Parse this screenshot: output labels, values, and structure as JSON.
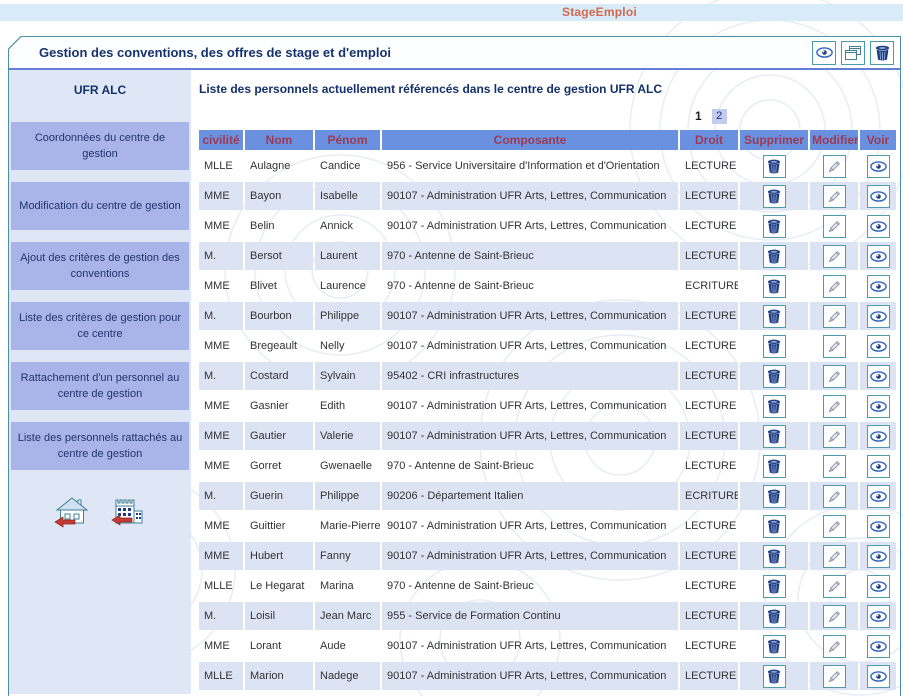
{
  "topbar": {
    "brand": "StageEmploi"
  },
  "titlebar": {
    "title": "Gestion des conventions, des offres de stage et d'emploi",
    "icons": [
      {
        "name": "eye-icon"
      },
      {
        "name": "cascade-windows-icon"
      },
      {
        "name": "trash-icon"
      }
    ]
  },
  "sidebar": {
    "header": "UFR ALC",
    "items": [
      "Coordonnées du centre de gestion",
      "Modification du centre de gestion",
      "Ajout des critères de gestion des conventions",
      "Liste des critères de gestion pour ce centre",
      "Rattachement d'un personnel au centre de gestion",
      "Liste des personnels rattachés au centre de gestion"
    ],
    "footer_icons": [
      "home-exit-icon",
      "building-exit-icon"
    ]
  },
  "main": {
    "title": "Liste des personnels actuellement référencés dans le centre de gestion UFR ALC",
    "pagination": {
      "current": "1",
      "other": "2"
    },
    "table": {
      "headers": [
        "civilité",
        "Nom",
        "Pénom",
        "Composante",
        "Droit",
        "Supprimer",
        "Modifier",
        "Voir"
      ],
      "rows": [
        {
          "civilite": "MLLE",
          "nom": "Aulagne",
          "prenom": "Candice",
          "composante": "956 - Service Universitaire d'Information et d'Orientation",
          "droit": "LECTURE"
        },
        {
          "civilite": "MME",
          "nom": "Bayon",
          "prenom": "Isabelle",
          "composante": "90107 - Administration UFR Arts, Lettres, Communication",
          "droit": "LECTURE"
        },
        {
          "civilite": "MME",
          "nom": "Belin",
          "prenom": "Annick",
          "composante": "90107 - Administration UFR Arts, Lettres, Communication",
          "droit": "LECTURE"
        },
        {
          "civilite": "M.",
          "nom": "Bersot",
          "prenom": "Laurent",
          "composante": "970 - Antenne de Saint-Brieuc",
          "droit": "LECTURE"
        },
        {
          "civilite": "MME",
          "nom": "Blivet",
          "prenom": "Laurence",
          "composante": "970 - Antenne de Saint-Brieuc",
          "droit": "ECRITURE"
        },
        {
          "civilite": "M.",
          "nom": "Bourbon",
          "prenom": "Philippe",
          "composante": "90107 - Administration UFR Arts, Lettres, Communication",
          "droit": "LECTURE"
        },
        {
          "civilite": "MME",
          "nom": "Bregeault",
          "prenom": "Nelly",
          "composante": "90107 - Administration UFR Arts, Lettres, Communication",
          "droit": "LECTURE"
        },
        {
          "civilite": "M.",
          "nom": "Costard",
          "prenom": "Sylvain",
          "composante": "95402 - CRI infrastructures",
          "droit": "LECTURE"
        },
        {
          "civilite": "MME",
          "nom": "Gasnier",
          "prenom": "Edith",
          "composante": "90107 - Administration UFR Arts, Lettres, Communication",
          "droit": "LECTURE"
        },
        {
          "civilite": "MME",
          "nom": "Gautier",
          "prenom": "Valerie",
          "composante": "90107 - Administration UFR Arts, Lettres, Communication",
          "droit": "LECTURE"
        },
        {
          "civilite": "MME",
          "nom": "Gorret",
          "prenom": "Gwenaelle",
          "composante": "970 - Antenne de Saint-Brieuc",
          "droit": "LECTURE"
        },
        {
          "civilite": "M.",
          "nom": "Guerin",
          "prenom": "Philippe",
          "composante": "90206 - Département Italien",
          "droit": "ECRITURE"
        },
        {
          "civilite": "MME",
          "nom": "Guittier",
          "prenom": "Marie-Pierre",
          "composante": "90107 - Administration UFR Arts, Lettres, Communication",
          "droit": "LECTURE"
        },
        {
          "civilite": "MME",
          "nom": "Hubert",
          "prenom": "Fanny",
          "composante": "90107 - Administration UFR Arts, Lettres, Communication",
          "droit": "LECTURE"
        },
        {
          "civilite": "MLLE",
          "nom": "Le Hegarat",
          "prenom": "Marina",
          "composante": "970 - Antenne de Saint-Brieuc",
          "droit": "LECTURE"
        },
        {
          "civilite": "M.",
          "nom": "Loisil",
          "prenom": "Jean Marc",
          "composante": "955 - Service de Formation Continu",
          "droit": "LECTURE"
        },
        {
          "civilite": "MME",
          "nom": "Lorant",
          "prenom": "Aude",
          "composante": "90107 - Administration UFR Arts, Lettres, Communication",
          "droit": "LECTURE"
        },
        {
          "civilite": "MLLE",
          "nom": "Marion",
          "prenom": "Nadege",
          "composante": "90107 - Administration UFR Arts, Lettres, Communication",
          "droit": "LECTURE"
        }
      ],
      "action_icons": [
        "trash-icon",
        "pencil-icon",
        "eye-icon"
      ]
    }
  },
  "colors": {
    "brand_orange": "#d2684e",
    "border_teal": "#4a8fa2",
    "underline_blue": "#637fd4",
    "header_cell_blue": "#6a90e0",
    "header_text_red": "#9e3a52",
    "row_alt_blue": "#dce4f4",
    "sidebar_panel": "#dfe7f6",
    "sidebar_button": "#a9b4e8",
    "navy_text": "#16336e"
  }
}
